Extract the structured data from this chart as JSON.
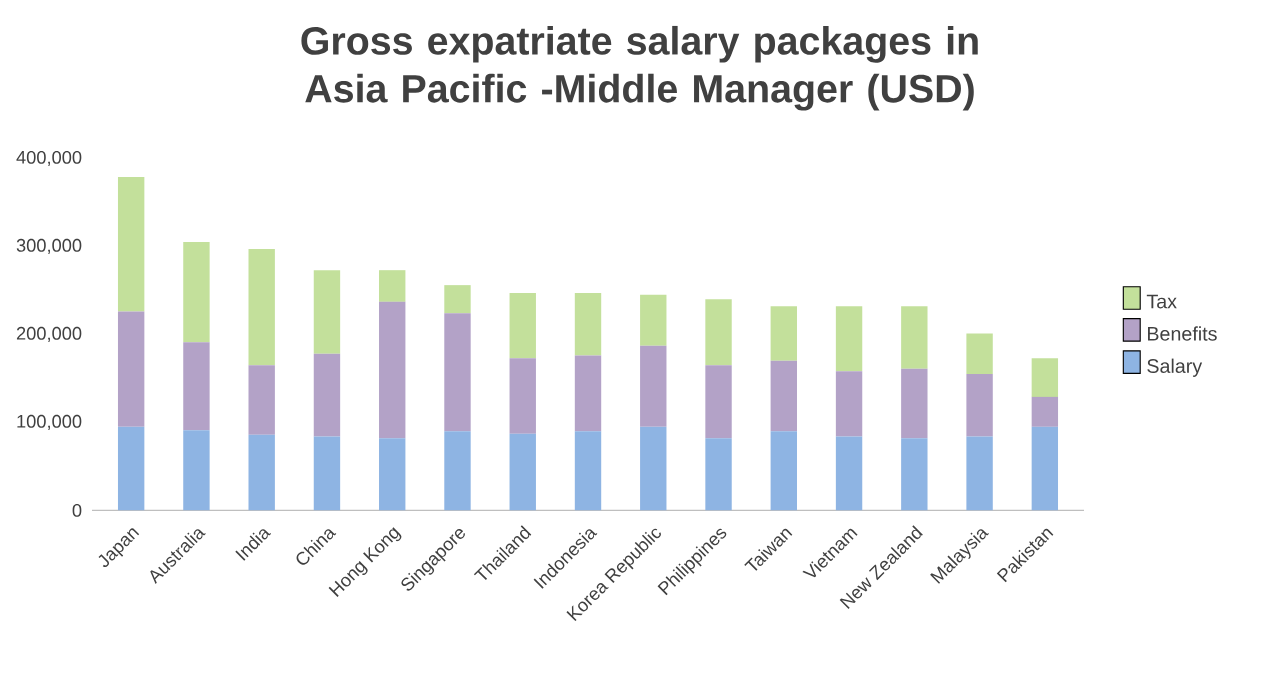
{
  "chart_data": {
    "type": "bar",
    "stacked": true,
    "title": "Gross expatriate salary packages in Asia Pacific -Middle Manager (USD)",
    "categories": [
      "Japan",
      "Australia",
      "India",
      "China",
      "Hong Kong",
      "Singapore",
      "Thailand",
      "Indonesia",
      "Korea Republic",
      "Philippines",
      "Taiwan",
      "Vietnam",
      "New Zealand",
      "Malaysia",
      "Pakistan"
    ],
    "series": [
      {
        "name": "Salary",
        "color": "#8eb4e3",
        "values": [
          95000,
          91000,
          86000,
          84000,
          82000,
          90000,
          87000,
          90000,
          95000,
          82000,
          90000,
          84000,
          82000,
          84000,
          95000
        ]
      },
      {
        "name": "Benefits",
        "color": "#b3a2c7",
        "values": [
          131000,
          100000,
          79000,
          94000,
          155000,
          134000,
          86000,
          86000,
          92000,
          83000,
          80000,
          74000,
          79000,
          71000,
          34000
        ]
      },
      {
        "name": "Tax",
        "color": "#c3e09b",
        "values": [
          153000,
          114000,
          132000,
          95000,
          36000,
          32000,
          74000,
          71000,
          58000,
          75000,
          62000,
          74000,
          71000,
          46000,
          44000
        ]
      }
    ],
    "ylim": [
      0,
      400000
    ],
    "yticks": [
      {
        "value": 0,
        "label": "0"
      },
      {
        "value": 100000,
        "label": "100,000"
      },
      {
        "value": 200000,
        "label": "200,000"
      },
      {
        "value": 300000,
        "label": "300,000"
      },
      {
        "value": 400000,
        "label": "400,000"
      }
    ],
    "legend": "right"
  }
}
